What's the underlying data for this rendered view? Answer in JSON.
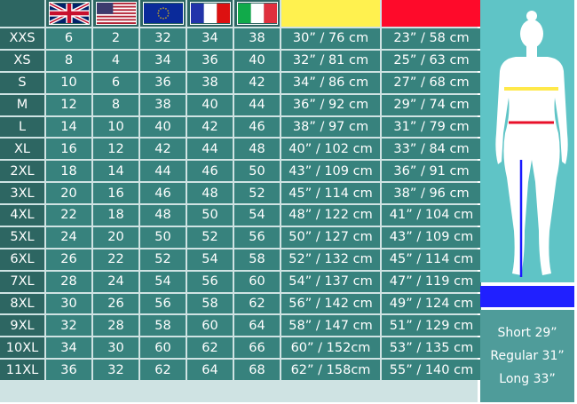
{
  "header": {
    "flags": [
      "uk-flag",
      "us-flag",
      "eu-flag",
      "france-flag",
      "italy-flag"
    ],
    "measure_colors": {
      "bust": "#fff14f",
      "waist": "#fe0a2a",
      "inseam": "#2020ff"
    }
  },
  "rows": [
    [
      "XXS",
      "6",
      "2",
      "32",
      "34",
      "38",
      "30” / 76 cm",
      "23” / 58 cm"
    ],
    [
      "XS",
      "8",
      "4",
      "34",
      "36",
      "40",
      "32” / 81 cm",
      "25” / 63 cm"
    ],
    [
      "S",
      "10",
      "6",
      "36",
      "38",
      "42",
      "34” / 86 cm",
      "27” / 68 cm"
    ],
    [
      "M",
      "12",
      "8",
      "38",
      "40",
      "44",
      "36” / 92 cm",
      "29” / 74 cm"
    ],
    [
      "L",
      "14",
      "10",
      "40",
      "42",
      "46",
      "38” / 97 cm",
      "31” / 79 cm"
    ],
    [
      "XL",
      "16",
      "12",
      "42",
      "44",
      "48",
      "40” / 102 cm",
      "33” / 84 cm"
    ],
    [
      "2XL",
      "18",
      "14",
      "44",
      "46",
      "50",
      "43” / 109 cm",
      "36” / 91 cm"
    ],
    [
      "3XL",
      "20",
      "16",
      "46",
      "48",
      "52",
      "45” / 114 cm",
      "38” / 96 cm"
    ],
    [
      "4XL",
      "22",
      "18",
      "48",
      "50",
      "54",
      "48” / 122 cm",
      "41” / 104 cm"
    ],
    [
      "5XL",
      "24",
      "20",
      "50",
      "52",
      "56",
      "50” / 127 cm",
      "43” / 109 cm"
    ],
    [
      "6XL",
      "26",
      "22",
      "52",
      "54",
      "58",
      "52” / 132 cm",
      "45” / 114 cm"
    ],
    [
      "7XL",
      "28",
      "24",
      "54",
      "56",
      "60",
      "54” / 137 cm",
      "47” / 119 cm"
    ],
    [
      "8XL",
      "30",
      "26",
      "56",
      "58",
      "62",
      "56” / 142 cm",
      "49” / 124 cm"
    ],
    [
      "9XL",
      "32",
      "28",
      "58",
      "60",
      "64",
      "58” / 147 cm",
      "51” / 129 cm"
    ],
    [
      "10XL",
      "34",
      "30",
      "60",
      "62",
      "66",
      "60” / 152cm",
      "53” / 135 cm"
    ],
    [
      "11XL",
      "36",
      "32",
      "62",
      "64",
      "68",
      "62” / 158cm",
      "55” / 140 cm"
    ]
  ],
  "inseam_lengths": [
    "Short 29”",
    "Regular 31”",
    "Long 33”"
  ]
}
